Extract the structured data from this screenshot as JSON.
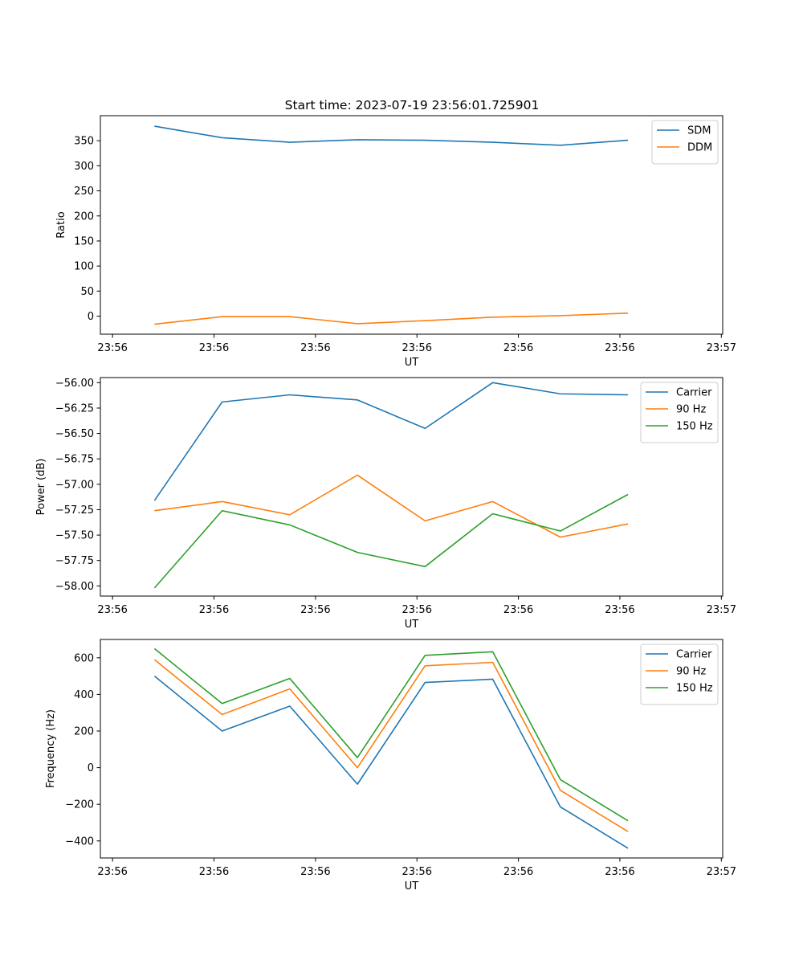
{
  "figure_title": "Start time: 2023-07-19 23:56:01.725901",
  "colors": {
    "blue": "#1f77b4",
    "orange": "#ff7f0e",
    "green": "#2ca02c"
  },
  "chart_data": [
    {
      "type": "line",
      "title": "Start time: 2023-07-19 23:56:01.725901",
      "xlabel": "UT",
      "ylabel": "Ratio",
      "x": [
        1,
        2,
        3,
        4,
        5,
        6,
        7,
        8
      ],
      "xlim": [
        0.2,
        9.4
      ],
      "xticks": [
        0.38,
        1.88,
        3.38,
        4.88,
        6.38,
        7.88,
        9.38
      ],
      "xtick_labels": [
        "23:56",
        "23:56",
        "23:56",
        "23:56",
        "23:56",
        "23:56",
        "23:57"
      ],
      "ylim": [
        -36,
        400
      ],
      "yticks": [
        0,
        50,
        100,
        150,
        200,
        250,
        300,
        350
      ],
      "ytick_labels": [
        "0",
        "50",
        "100",
        "150",
        "200",
        "250",
        "300",
        "350"
      ],
      "legend_position": "upper right",
      "series": [
        {
          "name": "SDM",
          "color": "#1f77b4",
          "values": [
            379,
            356,
            347,
            352,
            351,
            347,
            341,
            351
          ]
        },
        {
          "name": "DDM",
          "color": "#ff7f0e",
          "values": [
            -16,
            -1,
            -1,
            -15,
            -9,
            -2,
            1,
            6
          ]
        }
      ]
    },
    {
      "type": "line",
      "title": "",
      "xlabel": "UT",
      "ylabel": "Power (dB)",
      "x": [
        1,
        2,
        3,
        4,
        5,
        6,
        7,
        8
      ],
      "xlim": [
        0.2,
        9.4
      ],
      "xticks": [
        0.38,
        1.88,
        3.38,
        4.88,
        6.38,
        7.88,
        9.38
      ],
      "xtick_labels": [
        "23:56",
        "23:56",
        "23:56",
        "23:56",
        "23:56",
        "23:56",
        "23:57"
      ],
      "ylim": [
        -58.1,
        -55.95
      ],
      "yticks": [
        -58.0,
        -57.75,
        -57.5,
        -57.25,
        -57.0,
        -56.75,
        -56.5,
        -56.25,
        -56.0
      ],
      "ytick_labels": [
        "−58.00",
        "−57.75",
        "−57.50",
        "−57.25",
        "−57.00",
        "−56.75",
        "−56.50",
        "−56.25",
        "−56.00"
      ],
      "legend_position": "upper right",
      "series": [
        {
          "name": "Carrier",
          "color": "#1f77b4",
          "values": [
            -57.16,
            -56.19,
            -56.12,
            -56.17,
            -56.45,
            -56.0,
            -56.11,
            -56.12
          ]
        },
        {
          "name": "90 Hz",
          "color": "#ff7f0e",
          "values": [
            -57.26,
            -57.17,
            -57.3,
            -56.91,
            -57.36,
            -57.17,
            -57.52,
            -57.39
          ]
        },
        {
          "name": "150 Hz",
          "color": "#2ca02c",
          "values": [
            -58.02,
            -57.26,
            -57.4,
            -57.67,
            -57.81,
            -57.29,
            -57.46,
            -57.1
          ]
        }
      ]
    },
    {
      "type": "line",
      "title": "",
      "xlabel": "UT",
      "ylabel": "Frequency (Hz)",
      "x": [
        1,
        2,
        3,
        4,
        5,
        6,
        7,
        8
      ],
      "xlim": [
        0.2,
        9.4
      ],
      "xticks": [
        0.38,
        1.88,
        3.38,
        4.88,
        6.38,
        7.88,
        9.38
      ],
      "xtick_labels": [
        "23:56",
        "23:56",
        "23:56",
        "23:56",
        "23:56",
        "23:56",
        "23:57"
      ],
      "ylim": [
        -493,
        700
      ],
      "yticks": [
        -400,
        -200,
        0,
        200,
        400,
        600
      ],
      "ytick_labels": [
        "−400",
        "−200",
        "0",
        "200",
        "400",
        "600"
      ],
      "legend_position": "upper right",
      "series": [
        {
          "name": "Carrier",
          "color": "#1f77b4",
          "values": [
            500,
            200,
            336,
            -90,
            465,
            483,
            -214,
            -440
          ]
        },
        {
          "name": "90 Hz",
          "color": "#ff7f0e",
          "values": [
            590,
            290,
            430,
            0,
            556,
            575,
            -124,
            -349
          ]
        },
        {
          "name": "150 Hz",
          "color": "#2ca02c",
          "values": [
            650,
            350,
            487,
            55,
            613,
            633,
            -65,
            -290
          ]
        }
      ]
    }
  ]
}
